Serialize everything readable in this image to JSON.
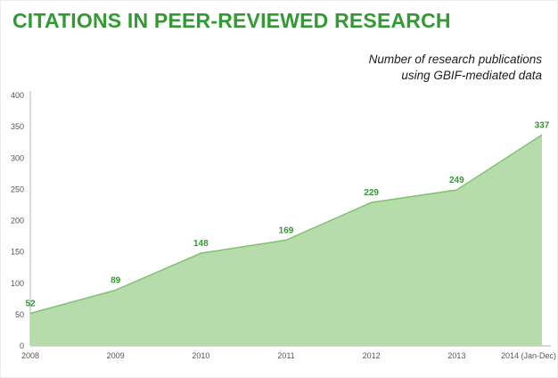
{
  "header": {
    "title": "CITATIONS IN PEER-REVIEWED RESEARCH",
    "subtitle_line1": "Number of research publications",
    "subtitle_line2": "using GBIF-mediated data"
  },
  "colors": {
    "title_green": "#339933",
    "area_fill": "#b7dcab",
    "area_line": "#7fc370",
    "value_label": "#339933",
    "axis_line": "#b3b3b3",
    "tick_text": "#555555"
  },
  "chart_data": {
    "type": "area",
    "title": "CITATIONS IN PEER-REVIEWED RESEARCH",
    "subtitle": "Number of research publications using GBIF-mediated data",
    "categories": [
      "2008",
      "2009",
      "2010",
      "2011",
      "2012",
      "2013",
      "2014 (Jan-Dec)"
    ],
    "values": [
      52,
      89,
      148,
      169,
      229,
      249,
      337
    ],
    "xlabel": "",
    "ylabel": "",
    "ylim": [
      0,
      400
    ],
    "yticks": [
      0,
      50,
      100,
      150,
      200,
      250,
      300,
      350,
      400
    ],
    "grid": false,
    "legend": false,
    "legend_position": "none"
  }
}
